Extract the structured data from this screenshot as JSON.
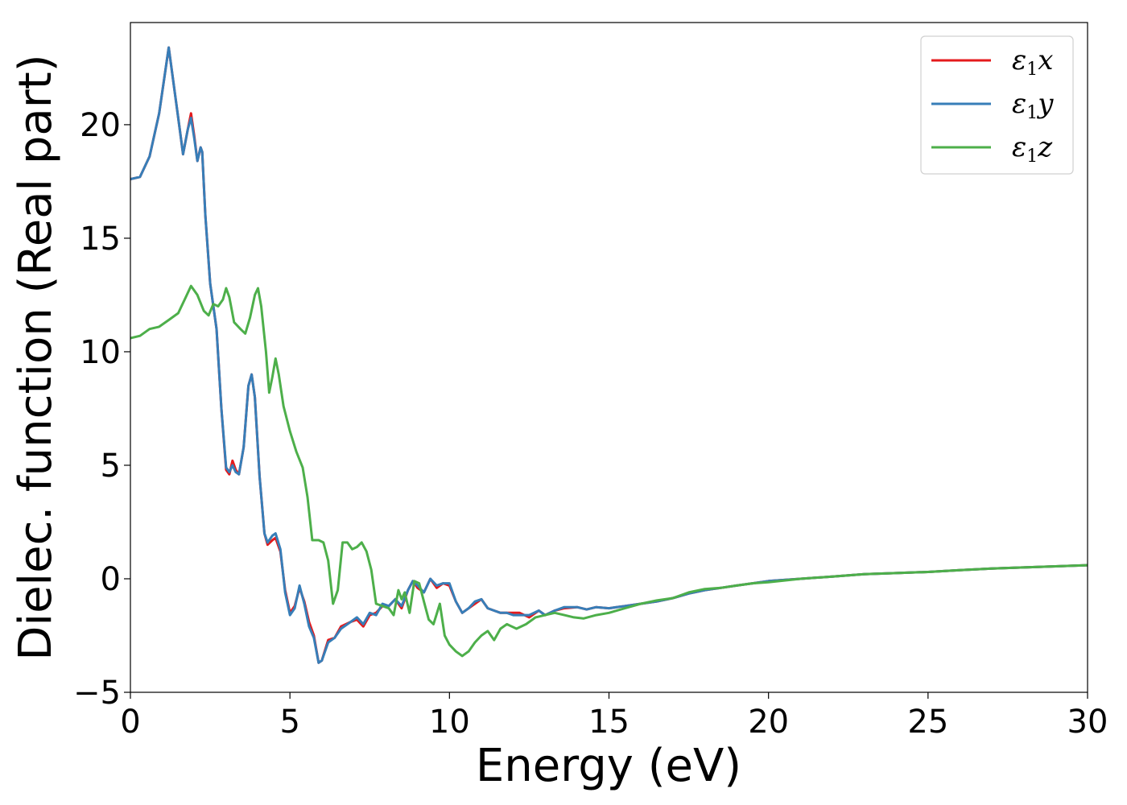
{
  "chart_data": {
    "type": "line",
    "title": "",
    "xlabel": "Energy (eV)",
    "ylabel": "Dielec. function (Real part)",
    "xlim": [
      0,
      30
    ],
    "ylim": [
      -5,
      24.5
    ],
    "xticks": [
      0,
      5,
      10,
      15,
      20,
      25,
      30
    ],
    "xtick_labels": [
      "0",
      "5",
      "10",
      "15",
      "20",
      "25",
      "30"
    ],
    "yticks": [
      -5,
      0,
      5,
      10,
      15,
      20
    ],
    "ytick_labels": [
      "−5",
      "0",
      "5",
      "10",
      "15",
      "20"
    ],
    "grid": false,
    "legend_position": "top-right",
    "series": [
      {
        "name": "ε1x",
        "legend_base": "ε",
        "legend_sub": "1",
        "legend_var": "x",
        "color": "#e41a1c",
        "points": [
          [
            0,
            17.6
          ],
          [
            0.3,
            17.7
          ],
          [
            0.6,
            18.6
          ],
          [
            0.9,
            20.5
          ],
          [
            1.2,
            23.4
          ],
          [
            1.5,
            20.3
          ],
          [
            1.65,
            18.7
          ],
          [
            1.8,
            19.8
          ],
          [
            1.9,
            20.5
          ],
          [
            2.0,
            19.5
          ],
          [
            2.1,
            18.4
          ],
          [
            2.2,
            19.0
          ],
          [
            2.25,
            18.8
          ],
          [
            2.35,
            16.0
          ],
          [
            2.5,
            13.0
          ],
          [
            2.7,
            11.0
          ],
          [
            2.85,
            7.5
          ],
          [
            3.0,
            4.8
          ],
          [
            3.1,
            4.6
          ],
          [
            3.2,
            5.2
          ],
          [
            3.3,
            4.8
          ],
          [
            3.4,
            4.6
          ],
          [
            3.55,
            5.8
          ],
          [
            3.7,
            8.5
          ],
          [
            3.8,
            9.0
          ],
          [
            3.9,
            8.0
          ],
          [
            4.05,
            4.5
          ],
          [
            4.2,
            2.0
          ],
          [
            4.3,
            1.5
          ],
          [
            4.45,
            1.7
          ],
          [
            4.55,
            1.8
          ],
          [
            4.7,
            1.2
          ],
          [
            4.85,
            -0.5
          ],
          [
            5.0,
            -1.5
          ],
          [
            5.15,
            -1.2
          ],
          [
            5.3,
            -0.4
          ],
          [
            5.45,
            -1.0
          ],
          [
            5.6,
            -1.9
          ],
          [
            5.75,
            -2.5
          ],
          [
            5.9,
            -3.7
          ],
          [
            6.0,
            -3.6
          ],
          [
            6.2,
            -2.7
          ],
          [
            6.4,
            -2.6
          ],
          [
            6.6,
            -2.1
          ],
          [
            6.9,
            -1.9
          ],
          [
            7.1,
            -1.8
          ],
          [
            7.3,
            -2.1
          ],
          [
            7.5,
            -1.6
          ],
          [
            7.7,
            -1.5
          ],
          [
            7.9,
            -1.2
          ],
          [
            8.1,
            -1.2
          ],
          [
            8.3,
            -0.9
          ],
          [
            8.5,
            -1.3
          ],
          [
            8.7,
            -0.5
          ],
          [
            8.85,
            -0.1
          ],
          [
            9.0,
            -0.4
          ],
          [
            9.2,
            -0.6
          ],
          [
            9.4,
            0.0
          ],
          [
            9.6,
            -0.4
          ],
          [
            9.8,
            -0.2
          ],
          [
            10.0,
            -0.3
          ],
          [
            10.2,
            -1.0
          ],
          [
            10.4,
            -1.5
          ],
          [
            10.6,
            -1.3
          ],
          [
            10.8,
            -1.1
          ],
          [
            11.0,
            -0.9
          ],
          [
            11.2,
            -1.3
          ],
          [
            11.4,
            -1.4
          ],
          [
            11.6,
            -1.5
          ],
          [
            11.8,
            -1.5
          ],
          [
            12.0,
            -1.5
          ],
          [
            12.2,
            -1.5
          ],
          [
            12.5,
            -1.7
          ],
          [
            12.8,
            -1.4
          ],
          [
            13.0,
            -1.6
          ],
          [
            13.3,
            -1.4
          ],
          [
            13.6,
            -1.3
          ],
          [
            14.0,
            -1.25
          ],
          [
            14.3,
            -1.35
          ],
          [
            14.6,
            -1.25
          ],
          [
            15.0,
            -1.3
          ],
          [
            15.5,
            -1.2
          ],
          [
            16.0,
            -1.1
          ],
          [
            16.5,
            -1.0
          ],
          [
            17.0,
            -0.85
          ],
          [
            17.5,
            -0.65
          ],
          [
            18.0,
            -0.5
          ],
          [
            18.5,
            -0.4
          ],
          [
            19.0,
            -0.3
          ],
          [
            19.5,
            -0.2
          ],
          [
            20.0,
            -0.1
          ],
          [
            21.0,
            0.0
          ],
          [
            22.0,
            0.1
          ],
          [
            23.0,
            0.2
          ],
          [
            24.0,
            0.25
          ],
          [
            25.0,
            0.3
          ],
          [
            26.0,
            0.38
          ],
          [
            27.0,
            0.45
          ],
          [
            28.0,
            0.5
          ],
          [
            29.0,
            0.55
          ],
          [
            30.0,
            0.6
          ]
        ]
      },
      {
        "name": "ε1y",
        "legend_base": "ε",
        "legend_sub": "1",
        "legend_var": "y",
        "color": "#377eb8",
        "points": [
          [
            0,
            17.6
          ],
          [
            0.3,
            17.7
          ],
          [
            0.6,
            18.6
          ],
          [
            0.9,
            20.5
          ],
          [
            1.2,
            23.4
          ],
          [
            1.5,
            20.3
          ],
          [
            1.65,
            18.7
          ],
          [
            1.8,
            19.8
          ],
          [
            1.9,
            20.3
          ],
          [
            2.0,
            19.4
          ],
          [
            2.1,
            18.4
          ],
          [
            2.2,
            19.0
          ],
          [
            2.25,
            18.8
          ],
          [
            2.35,
            16.0
          ],
          [
            2.5,
            13.0
          ],
          [
            2.7,
            11.0
          ],
          [
            2.85,
            7.5
          ],
          [
            3.0,
            4.9
          ],
          [
            3.1,
            4.7
          ],
          [
            3.2,
            5.0
          ],
          [
            3.3,
            4.7
          ],
          [
            3.4,
            4.6
          ],
          [
            3.55,
            5.8
          ],
          [
            3.7,
            8.5
          ],
          [
            3.8,
            9.0
          ],
          [
            3.9,
            8.0
          ],
          [
            4.05,
            4.5
          ],
          [
            4.2,
            2.0
          ],
          [
            4.3,
            1.6
          ],
          [
            4.45,
            1.9
          ],
          [
            4.55,
            2.0
          ],
          [
            4.7,
            1.3
          ],
          [
            4.85,
            -0.6
          ],
          [
            5.0,
            -1.6
          ],
          [
            5.15,
            -1.3
          ],
          [
            5.3,
            -0.3
          ],
          [
            5.45,
            -1.1
          ],
          [
            5.6,
            -2.1
          ],
          [
            5.75,
            -2.6
          ],
          [
            5.9,
            -3.7
          ],
          [
            6.0,
            -3.6
          ],
          [
            6.2,
            -2.8
          ],
          [
            6.4,
            -2.6
          ],
          [
            6.6,
            -2.2
          ],
          [
            6.9,
            -1.9
          ],
          [
            7.1,
            -1.7
          ],
          [
            7.3,
            -2.0
          ],
          [
            7.5,
            -1.5
          ],
          [
            7.7,
            -1.6
          ],
          [
            7.9,
            -1.1
          ],
          [
            8.1,
            -1.2
          ],
          [
            8.3,
            -0.9
          ],
          [
            8.5,
            -1.2
          ],
          [
            8.7,
            -0.5
          ],
          [
            8.85,
            -0.1
          ],
          [
            9.0,
            -0.3
          ],
          [
            9.2,
            -0.6
          ],
          [
            9.4,
            0.0
          ],
          [
            9.6,
            -0.3
          ],
          [
            9.8,
            -0.2
          ],
          [
            10.0,
            -0.2
          ],
          [
            10.2,
            -1.0
          ],
          [
            10.4,
            -1.5
          ],
          [
            10.6,
            -1.3
          ],
          [
            10.8,
            -1.0
          ],
          [
            11.0,
            -0.9
          ],
          [
            11.2,
            -1.3
          ],
          [
            11.4,
            -1.4
          ],
          [
            11.6,
            -1.5
          ],
          [
            11.8,
            -1.5
          ],
          [
            12.0,
            -1.6
          ],
          [
            12.2,
            -1.6
          ],
          [
            12.5,
            -1.6
          ],
          [
            12.8,
            -1.4
          ],
          [
            13.0,
            -1.6
          ],
          [
            13.3,
            -1.4
          ],
          [
            13.6,
            -1.25
          ],
          [
            14.0,
            -1.25
          ],
          [
            14.3,
            -1.35
          ],
          [
            14.6,
            -1.25
          ],
          [
            15.0,
            -1.3
          ],
          [
            15.5,
            -1.2
          ],
          [
            16.0,
            -1.1
          ],
          [
            16.5,
            -1.0
          ],
          [
            17.0,
            -0.85
          ],
          [
            17.5,
            -0.65
          ],
          [
            18.0,
            -0.5
          ],
          [
            18.5,
            -0.4
          ],
          [
            19.0,
            -0.3
          ],
          [
            19.5,
            -0.2
          ],
          [
            20.0,
            -0.1
          ],
          [
            21.0,
            0.0
          ],
          [
            22.0,
            0.1
          ],
          [
            23.0,
            0.2
          ],
          [
            24.0,
            0.25
          ],
          [
            25.0,
            0.3
          ],
          [
            26.0,
            0.38
          ],
          [
            27.0,
            0.45
          ],
          [
            28.0,
            0.5
          ],
          [
            29.0,
            0.55
          ],
          [
            30.0,
            0.6
          ]
        ]
      },
      {
        "name": "ε1z",
        "legend_base": "ε",
        "legend_sub": "1",
        "legend_var": "z",
        "color": "#4daf4a",
        "points": [
          [
            0,
            10.6
          ],
          [
            0.3,
            10.7
          ],
          [
            0.6,
            11.0
          ],
          [
            0.9,
            11.1
          ],
          [
            1.2,
            11.4
          ],
          [
            1.5,
            11.7
          ],
          [
            1.7,
            12.3
          ],
          [
            1.9,
            12.9
          ],
          [
            2.1,
            12.5
          ],
          [
            2.3,
            11.8
          ],
          [
            2.45,
            11.6
          ],
          [
            2.6,
            12.1
          ],
          [
            2.75,
            12.0
          ],
          [
            2.9,
            12.3
          ],
          [
            3.0,
            12.8
          ],
          [
            3.1,
            12.4
          ],
          [
            3.25,
            11.3
          ],
          [
            3.45,
            11.0
          ],
          [
            3.6,
            10.8
          ],
          [
            3.75,
            11.5
          ],
          [
            3.9,
            12.5
          ],
          [
            4.0,
            12.8
          ],
          [
            4.1,
            12.0
          ],
          [
            4.25,
            10.0
          ],
          [
            4.35,
            8.2
          ],
          [
            4.45,
            8.9
          ],
          [
            4.55,
            9.7
          ],
          [
            4.65,
            9.0
          ],
          [
            4.8,
            7.6
          ],
          [
            5.0,
            6.5
          ],
          [
            5.2,
            5.6
          ],
          [
            5.4,
            4.9
          ],
          [
            5.55,
            3.6
          ],
          [
            5.7,
            1.7
          ],
          [
            5.9,
            1.7
          ],
          [
            6.05,
            1.6
          ],
          [
            6.2,
            0.8
          ],
          [
            6.35,
            -1.1
          ],
          [
            6.5,
            -0.5
          ],
          [
            6.65,
            1.6
          ],
          [
            6.8,
            1.6
          ],
          [
            6.95,
            1.3
          ],
          [
            7.1,
            1.4
          ],
          [
            7.25,
            1.6
          ],
          [
            7.4,
            1.2
          ],
          [
            7.55,
            0.4
          ],
          [
            7.7,
            -1.1
          ],
          [
            7.9,
            -1.2
          ],
          [
            8.1,
            -1.3
          ],
          [
            8.25,
            -1.6
          ],
          [
            8.4,
            -0.5
          ],
          [
            8.5,
            -0.9
          ],
          [
            8.6,
            -0.6
          ],
          [
            8.75,
            -1.5
          ],
          [
            8.9,
            -0.1
          ],
          [
            9.05,
            -0.2
          ],
          [
            9.2,
            -1.0
          ],
          [
            9.35,
            -1.8
          ],
          [
            9.5,
            -2.0
          ],
          [
            9.7,
            -1.1
          ],
          [
            9.85,
            -2.5
          ],
          [
            10.0,
            -2.9
          ],
          [
            10.2,
            -3.2
          ],
          [
            10.4,
            -3.4
          ],
          [
            10.6,
            -3.2
          ],
          [
            10.8,
            -2.8
          ],
          [
            11.0,
            -2.5
          ],
          [
            11.2,
            -2.3
          ],
          [
            11.4,
            -2.7
          ],
          [
            11.6,
            -2.2
          ],
          [
            11.8,
            -2.0
          ],
          [
            12.1,
            -2.2
          ],
          [
            12.4,
            -2.0
          ],
          [
            12.7,
            -1.7
          ],
          [
            13.0,
            -1.6
          ],
          [
            13.3,
            -1.5
          ],
          [
            13.6,
            -1.6
          ],
          [
            13.9,
            -1.7
          ],
          [
            14.2,
            -1.75
          ],
          [
            14.6,
            -1.6
          ],
          [
            15.0,
            -1.5
          ],
          [
            15.5,
            -1.3
          ],
          [
            16.0,
            -1.1
          ],
          [
            16.5,
            -0.95
          ],
          [
            17.0,
            -0.85
          ],
          [
            17.5,
            -0.6
          ],
          [
            18.0,
            -0.45
          ],
          [
            18.5,
            -0.4
          ],
          [
            19.0,
            -0.3
          ],
          [
            19.5,
            -0.2
          ],
          [
            20.0,
            -0.15
          ],
          [
            21.0,
            0.0
          ],
          [
            22.0,
            0.1
          ],
          [
            23.0,
            0.2
          ],
          [
            24.0,
            0.25
          ],
          [
            25.0,
            0.3
          ],
          [
            26.0,
            0.38
          ],
          [
            27.0,
            0.45
          ],
          [
            28.0,
            0.5
          ],
          [
            29.0,
            0.55
          ],
          [
            30.0,
            0.6
          ]
        ]
      }
    ]
  }
}
